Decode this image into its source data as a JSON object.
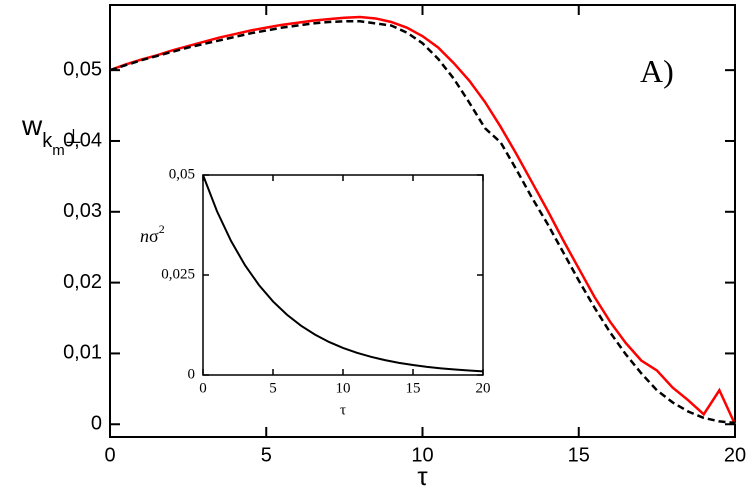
{
  "chart_data": [
    {
      "type": "line",
      "annotation": "A)",
      "xlabel": "τ",
      "ylabel_parts": [
        "w",
        "k",
        "m",
        "⊥"
      ],
      "x": [
        0,
        0.5,
        1,
        1.5,
        2,
        2.5,
        3,
        3.5,
        4,
        4.5,
        5,
        5.5,
        6,
        6.5,
        7,
        7.5,
        8,
        8.5,
        9,
        9.5,
        10,
        10.5,
        11,
        11.5,
        12,
        12.5,
        13,
        13.5,
        14,
        14.5,
        15,
        15.5,
        16,
        16.5,
        17,
        17.5,
        18,
        18.5,
        19,
        19.5,
        20
      ],
      "series": [
        {
          "color": "#ff0000",
          "dashed": false,
          "values": [
            0.05,
            0.0508,
            0.0515,
            0.0521,
            0.0528,
            0.0534,
            0.054,
            0.0546,
            0.0551,
            0.0556,
            0.056,
            0.0564,
            0.0567,
            0.057,
            0.0572,
            0.0574,
            0.0575,
            0.0573,
            0.0568,
            0.056,
            0.0548,
            0.0532,
            0.051,
            0.0485,
            0.0455,
            0.042,
            0.0382,
            0.0342,
            0.0302,
            0.026,
            0.022,
            0.018,
            0.0145,
            0.0115,
            0.009,
            0.0076,
            0.0052,
            0.0034,
            0.0014,
            0.0048,
            0
          ]
        },
        {
          "color": "#000000",
          "dashed": true,
          "values": [
            0.05,
            0.0507,
            0.0514,
            0.052,
            0.0526,
            0.0532,
            0.0537,
            0.0542,
            0.0547,
            0.0552,
            0.0556,
            0.056,
            0.0563,
            0.0566,
            0.0568,
            0.0569,
            0.0569,
            0.0566,
            0.0563,
            0.0553,
            0.0538,
            0.0516,
            0.0488,
            0.0454,
            0.0418,
            0.0398,
            0.036,
            0.032,
            0.0283,
            0.0243,
            0.0203,
            0.0165,
            0.013,
            0.0099,
            0.0072,
            0.0048,
            0.0031,
            0.0018,
            0.0009,
            0.0004,
            0.0002
          ]
        }
      ],
      "xlim": [
        0,
        20
      ],
      "xticks": [
        0,
        5,
        10,
        15,
        20
      ],
      "ylim": [
        -0.0018,
        0.0592
      ],
      "yticks": [
        0,
        {
          "value": 0.01,
          "label": "0,01"
        },
        {
          "value": 0.02,
          "label": "0,02"
        },
        {
          "value": 0.03,
          "label": "0,03"
        },
        {
          "value": 0.04,
          "label": "0,04"
        },
        {
          "value": 0.05,
          "label": "0,05"
        }
      ]
    },
    {
      "type": "line",
      "xlabel": "τ",
      "ylabel_parts": [
        "n",
        "σ",
        "2"
      ],
      "x": [
        0,
        1,
        2,
        3,
        4,
        5,
        6,
        7,
        8,
        9,
        10,
        11,
        12,
        13,
        14,
        15,
        16,
        17,
        18,
        19,
        20
      ],
      "series": [
        {
          "color": "#000000",
          "dashed": false,
          "values": [
            0.05,
            0.04094,
            0.03352,
            0.02744,
            0.02247,
            0.01839,
            0.01506,
            0.01233,
            0.01009,
            0.00826,
            0.00677,
            0.00554,
            0.00454,
            0.00372,
            0.00304,
            0.00249,
            0.00204,
            0.00167,
            0.00137,
            0.00112,
            0.00092
          ]
        }
      ],
      "xlim": [
        0,
        20
      ],
      "xticks": [
        0,
        5,
        10,
        15,
        20
      ],
      "ylim": [
        0,
        0.05
      ],
      "yticks": [
        0,
        {
          "value": 0.025,
          "label": "0,025"
        },
        {
          "value": 0.05,
          "label": "0,05"
        }
      ]
    }
  ]
}
